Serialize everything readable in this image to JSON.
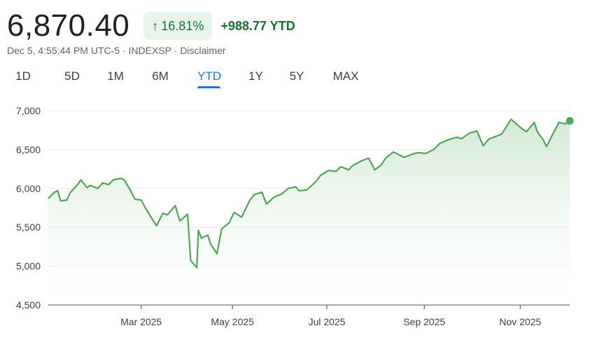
{
  "quote": {
    "price": "6,870.40",
    "pct_change": "16.81%",
    "abs_change": "+988.77 YTD",
    "timestamp": "Dec 5, 4:55:44 PM UTC-5",
    "separator": " · ",
    "exchange": "INDEXSP",
    "disclaimer": "Disclaimer"
  },
  "ranges": [
    {
      "label": "1D"
    },
    {
      "label": "5D"
    },
    {
      "label": "1M"
    },
    {
      "label": "6M"
    },
    {
      "label": "YTD",
      "active": true
    },
    {
      "label": "1Y"
    },
    {
      "label": "5Y"
    },
    {
      "label": "MAX"
    }
  ],
  "colors": {
    "line": "#4fa654",
    "fill_top": "#cfe8d1",
    "grid": "#e8eaed",
    "up": "#137333",
    "accent": "#1a73e8"
  },
  "chart_data": {
    "type": "area",
    "ylim": [
      4500,
      7000
    ],
    "yticks": [
      "4,500",
      "5,000",
      "5,500",
      "6,000",
      "6,500",
      "7,000"
    ],
    "ytick_values": [
      4500,
      5000,
      5500,
      6000,
      6500,
      7000
    ],
    "xticks": [
      {
        "label": "Mar 2025",
        "date": "2025-03-03"
      },
      {
        "label": "May 2025",
        "date": "2025-05-01"
      },
      {
        "label": "Jul 2025",
        "date": "2025-07-01"
      },
      {
        "label": "Sep 2025",
        "date": "2025-09-02"
      },
      {
        "label": "Nov 2025",
        "date": "2025-11-03"
      }
    ],
    "x_range": [
      "2025-01-02",
      "2025-12-05"
    ],
    "grid": true,
    "series": [
      {
        "values": [
          [
            "2025-01-02",
            5870
          ],
          [
            "2025-01-06",
            5950
          ],
          [
            "2025-01-08",
            5970
          ],
          [
            "2025-01-10",
            5840
          ],
          [
            "2025-01-14",
            5850
          ],
          [
            "2025-01-16",
            5940
          ],
          [
            "2025-01-21",
            6050
          ],
          [
            "2025-01-23",
            6110
          ],
          [
            "2025-01-27",
            6010
          ],
          [
            "2025-01-29",
            6040
          ],
          [
            "2025-02-03",
            6000
          ],
          [
            "2025-02-06",
            6070
          ],
          [
            "2025-02-10",
            6050
          ],
          [
            "2025-02-13",
            6110
          ],
          [
            "2025-02-18",
            6130
          ],
          [
            "2025-02-20",
            6110
          ],
          [
            "2025-02-24",
            5980
          ],
          [
            "2025-02-27",
            5860
          ],
          [
            "2025-03-03",
            5850
          ],
          [
            "2025-03-06",
            5740
          ],
          [
            "2025-03-10",
            5610
          ],
          [
            "2025-03-13",
            5520
          ],
          [
            "2025-03-17",
            5680
          ],
          [
            "2025-03-20",
            5660
          ],
          [
            "2025-03-25",
            5780
          ],
          [
            "2025-03-28",
            5580
          ],
          [
            "2025-04-02",
            5670
          ],
          [
            "2025-04-04",
            5070
          ],
          [
            "2025-04-08",
            4980
          ],
          [
            "2025-04-09",
            5460
          ],
          [
            "2025-04-11",
            5360
          ],
          [
            "2025-04-15",
            5400
          ],
          [
            "2025-04-17",
            5280
          ],
          [
            "2025-04-21",
            5160
          ],
          [
            "2025-04-24",
            5480
          ],
          [
            "2025-04-29",
            5560
          ],
          [
            "2025-05-02",
            5690
          ],
          [
            "2025-05-07",
            5630
          ],
          [
            "2025-05-12",
            5840
          ],
          [
            "2025-05-15",
            5920
          ],
          [
            "2025-05-20",
            5950
          ],
          [
            "2025-05-23",
            5800
          ],
          [
            "2025-05-28",
            5890
          ],
          [
            "2025-06-02",
            5930
          ],
          [
            "2025-06-06",
            6000
          ],
          [
            "2025-06-11",
            6020
          ],
          [
            "2025-06-13",
            5970
          ],
          [
            "2025-06-18",
            5980
          ],
          [
            "2025-06-24",
            6090
          ],
          [
            "2025-06-27",
            6170
          ],
          [
            "2025-07-02",
            6230
          ],
          [
            "2025-07-07",
            6220
          ],
          [
            "2025-07-10",
            6280
          ],
          [
            "2025-07-15",
            6240
          ],
          [
            "2025-07-18",
            6300
          ],
          [
            "2025-07-24",
            6360
          ],
          [
            "2025-07-28",
            6390
          ],
          [
            "2025-08-01",
            6240
          ],
          [
            "2025-08-05",
            6300
          ],
          [
            "2025-08-08",
            6390
          ],
          [
            "2025-08-13",
            6470
          ],
          [
            "2025-08-20",
            6400
          ],
          [
            "2025-08-25",
            6440
          ],
          [
            "2025-08-29",
            6460
          ],
          [
            "2025-09-03",
            6450
          ],
          [
            "2025-09-08",
            6500
          ],
          [
            "2025-09-12",
            6580
          ],
          [
            "2025-09-18",
            6630
          ],
          [
            "2025-09-23",
            6660
          ],
          [
            "2025-09-26",
            6640
          ],
          [
            "2025-10-01",
            6710
          ],
          [
            "2025-10-06",
            6740
          ],
          [
            "2025-10-10",
            6550
          ],
          [
            "2025-10-14",
            6640
          ],
          [
            "2025-10-17",
            6660
          ],
          [
            "2025-10-22",
            6700
          ],
          [
            "2025-10-28",
            6890
          ],
          [
            "2025-10-31",
            6840
          ],
          [
            "2025-11-04",
            6770
          ],
          [
            "2025-11-07",
            6730
          ],
          [
            "2025-11-12",
            6850
          ],
          [
            "2025-11-14",
            6730
          ],
          [
            "2025-11-18",
            6620
          ],
          [
            "2025-11-20",
            6540
          ],
          [
            "2025-11-24",
            6700
          ],
          [
            "2025-11-28",
            6850
          ],
          [
            "2025-12-02",
            6830
          ],
          [
            "2025-12-05",
            6870.4
          ]
        ]
      }
    ]
  }
}
